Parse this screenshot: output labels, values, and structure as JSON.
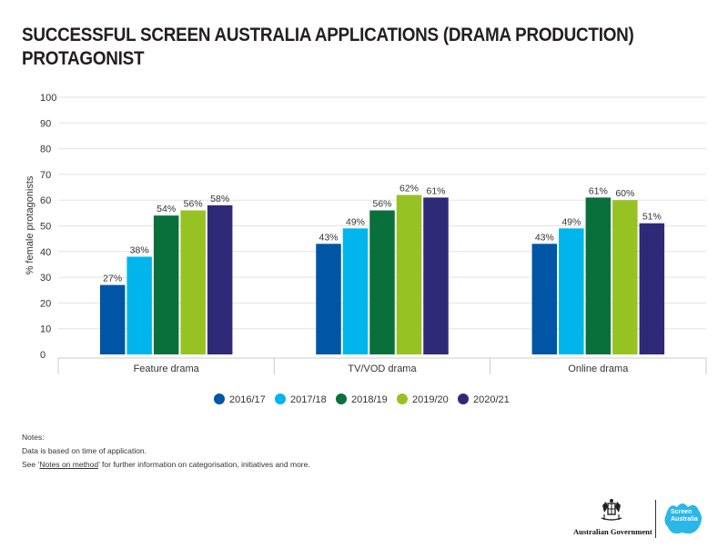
{
  "title_line1": "SUCCESSFUL SCREEN AUSTRALIA APPLICATIONS (DRAMA PRODUCTION)",
  "title_line2": "PROTAGONIST",
  "chart_data": {
    "type": "bar",
    "ylabel": "% female protagonists",
    "ylim": [
      0,
      100
    ],
    "yticks": [
      0,
      10,
      20,
      30,
      40,
      50,
      60,
      70,
      80,
      90,
      100
    ],
    "categories": [
      "Feature drama",
      "TV/VOD drama",
      "Online drama"
    ],
    "series": [
      {
        "name": "2016/17",
        "color": "#0055a5",
        "values": [
          27,
          43,
          43
        ],
        "labels": [
          "27%",
          "43%",
          "43%"
        ]
      },
      {
        "name": "2017/18",
        "color": "#00b5ec",
        "values": [
          38,
          49,
          49
        ],
        "labels": [
          "38%",
          "49%",
          "49%"
        ]
      },
      {
        "name": "2018/19",
        "color": "#09703c",
        "values": [
          54,
          56,
          61
        ],
        "labels": [
          "54%",
          "56%",
          "61%"
        ]
      },
      {
        "name": "2019/20",
        "color": "#97c224",
        "values": [
          56,
          62,
          60
        ],
        "labels": [
          "56%",
          "62%",
          "60%"
        ]
      },
      {
        "name": "2020/21",
        "color": "#2f2a78",
        "values": [
          58,
          61,
          51
        ],
        "labels": [
          "58%",
          "61%",
          "51%"
        ]
      }
    ],
    "grid": true,
    "legend_position": "bottom"
  },
  "notes": {
    "heading": "Notes:",
    "line1": "Data is based on time of application.",
    "line2_prefix": "See ‘",
    "line2_link": "Notes on method",
    "line2_suffix": "’ for further information on categorisation, initiatives and more."
  },
  "logos": {
    "government": "Australian Government",
    "screen_australia_line1": "Screen",
    "screen_australia_line2": "Australia",
    "brand_color": "#2bb6e8"
  }
}
